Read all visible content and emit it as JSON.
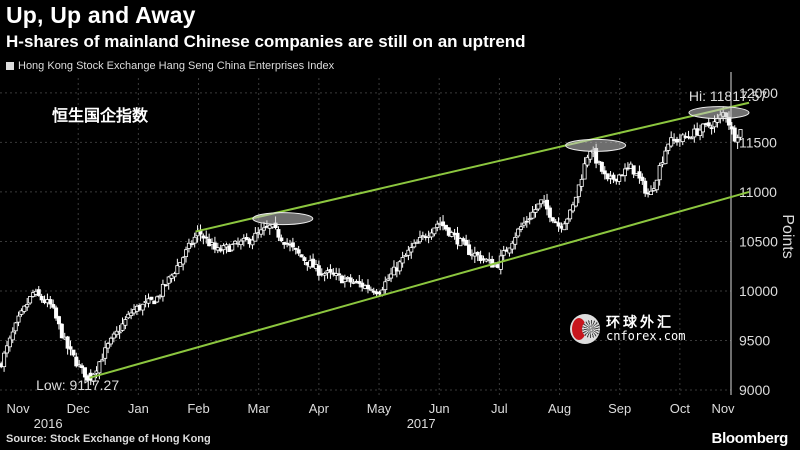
{
  "header": {
    "title": "Up, Up and Away",
    "subtitle": "H-shares of mainland Chinese companies are still on an uptrend"
  },
  "legend": {
    "label": "Hong Kong Stock Exchange Hang Seng China Enterprises Index"
  },
  "footer": {
    "source": "Source: Stock Exchange of Hong Kong",
    "brand": "Bloomberg"
  },
  "watermark": {
    "cn": "环球外汇",
    "en": "cnforex.com"
  },
  "colors": {
    "background": "#000000",
    "trend": "#8cc63f",
    "candle": "#ffffff",
    "grid": "#3a3a3a",
    "axis": "#dddddd"
  },
  "chart_data": {
    "type": "candlestick",
    "title": "Up, Up and Away",
    "series_name": "Hong Kong Stock Exchange Hang Seng China Enterprises Index",
    "chart_label": "恒生国企指数",
    "ylabel": "Points",
    "yaxis_side": "right",
    "ylim": [
      8950,
      12150
    ],
    "yticks": [
      9000,
      9500,
      10000,
      10500,
      11000,
      11500,
      12000
    ],
    "xlim": [
      0,
      12.15
    ],
    "x_ticks": [
      {
        "x": 0.3,
        "label": "Nov"
      },
      {
        "x": 1.3,
        "label": "Dec"
      },
      {
        "x": 2.3,
        "label": "Jan"
      },
      {
        "x": 3.3,
        "label": "Feb"
      },
      {
        "x": 4.3,
        "label": "Mar"
      },
      {
        "x": 5.3,
        "label": "Apr"
      },
      {
        "x": 6.3,
        "label": "May"
      },
      {
        "x": 7.3,
        "label": "Jun"
      },
      {
        "x": 8.3,
        "label": "Jul"
      },
      {
        "x": 9.3,
        "label": "Aug"
      },
      {
        "x": 10.3,
        "label": "Sep"
      },
      {
        "x": 11.3,
        "label": "Oct"
      },
      {
        "x": 12.3,
        "label": "Nov"
      }
    ],
    "year_labels": [
      {
        "x": 0.8,
        "label": "2016"
      },
      {
        "x": 7.0,
        "label": "2017"
      }
    ],
    "anchors": [
      [
        0,
        9250
      ],
      [
        0.3,
        9700
      ],
      [
        0.55,
        9980
      ],
      [
        0.85,
        9850
      ],
      [
        1.1,
        9450
      ],
      [
        1.35,
        9200
      ],
      [
        1.5,
        9117.27
      ],
      [
        1.8,
        9450
      ],
      [
        2.2,
        9800
      ],
      [
        2.6,
        9920
      ],
      [
        3.0,
        10300
      ],
      [
        3.3,
        10600
      ],
      [
        3.6,
        10400
      ],
      [
        4.1,
        10500
      ],
      [
        4.5,
        10650
      ],
      [
        4.9,
        10400
      ],
      [
        5.3,
        10200
      ],
      [
        5.8,
        10100
      ],
      [
        6.3,
        10000
      ],
      [
        6.8,
        10400
      ],
      [
        7.3,
        10700
      ],
      [
        7.8,
        10400
      ],
      [
        8.25,
        10250
      ],
      [
        8.6,
        10600
      ],
      [
        9.0,
        10900
      ],
      [
        9.3,
        10650
      ],
      [
        9.5,
        10800
      ],
      [
        9.8,
        11450
      ],
      [
        10.1,
        11100
      ],
      [
        10.5,
        11250
      ],
      [
        10.8,
        10950
      ],
      [
        11.1,
        11500
      ],
      [
        11.4,
        11550
      ],
      [
        11.7,
        11650
      ],
      [
        11.9,
        11700
      ],
      [
        12.05,
        11817.57
      ],
      [
        12.2,
        11550
      ],
      [
        12.35,
        11650
      ]
    ],
    "channel": {
      "upper": [
        [
          3.25,
          10600
        ],
        [
          12.45,
          11900
        ]
      ],
      "lower": [
        [
          1.45,
          9117.27
        ],
        [
          12.45,
          11000
        ]
      ]
    },
    "highlights": [
      [
        4.7,
        10730
      ],
      [
        9.9,
        11470
      ],
      [
        11.95,
        11800
      ]
    ],
    "annotations": [
      {
        "text": "Low: 9117.27",
        "x": 0.6,
        "y": 9000
      },
      {
        "text": "Hi: 11817.57",
        "x": 11.45,
        "y": 11920
      }
    ]
  }
}
